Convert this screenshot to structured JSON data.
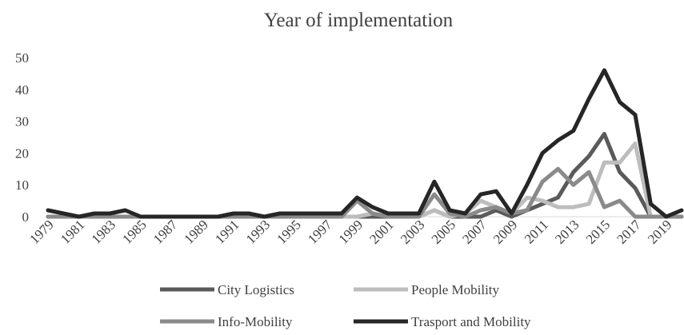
{
  "chart_data": {
    "type": "line",
    "title": "Year of implementation",
    "xlabel": "",
    "ylabel": "",
    "ylim": [
      0,
      50
    ],
    "yticks": [
      0,
      10,
      20,
      30,
      40,
      50
    ],
    "grid": false,
    "legend_position": "bottom",
    "x": [
      1979,
      1980,
      1981,
      1982,
      1983,
      1984,
      1985,
      1986,
      1987,
      1988,
      1989,
      1990,
      1991,
      1992,
      1993,
      1994,
      1995,
      1996,
      1997,
      1998,
      1999,
      2000,
      2001,
      2002,
      2003,
      2004,
      2005,
      2006,
      2007,
      2008,
      2009,
      2010,
      2011,
      2012,
      2013,
      2014,
      2015,
      2016,
      2017,
      2018,
      2019,
      2020
    ],
    "x_tick_labels": [
      "1979",
      "1981",
      "1983",
      "1985",
      "1987",
      "1989",
      "1991",
      "1993",
      "1995",
      "1997",
      "1999",
      "2001",
      "2003",
      "2005",
      "2007",
      "2009",
      "2011",
      "2013",
      "2015",
      "2017",
      "2019"
    ],
    "series": [
      {
        "name": "City Logistics",
        "color": "#5a5a5a",
        "values": [
          0,
          0,
          0,
          0,
          0,
          0,
          0,
          0,
          0,
          0,
          0,
          0,
          0,
          0,
          0,
          0,
          0,
          0,
          0,
          0,
          0,
          0,
          0,
          0,
          0,
          2,
          0,
          0,
          0,
          2,
          0,
          2,
          4,
          6,
          14,
          19,
          26,
          14,
          9,
          0,
          0,
          0
        ]
      },
      {
        "name": "People Mobility",
        "color": "#bdbdbd",
        "values": [
          0,
          0,
          0,
          0,
          0,
          0,
          0,
          0,
          0,
          0,
          0,
          0,
          0,
          0,
          0,
          0,
          0,
          0,
          0,
          0,
          0,
          1,
          0,
          0,
          0,
          2,
          0,
          1,
          5,
          3,
          1,
          6,
          5,
          3,
          3,
          4,
          17,
          17,
          23,
          0,
          0,
          0
        ]
      },
      {
        "name": "Info-Mobility",
        "color": "#8a8a8a",
        "values": [
          0,
          0,
          0,
          0,
          0,
          0,
          0,
          0,
          0,
          0,
          0,
          0,
          0,
          0,
          0,
          0,
          0,
          0,
          0,
          0,
          5,
          1,
          0,
          0,
          0,
          7,
          1,
          0,
          2,
          3,
          1,
          2,
          11,
          15,
          10,
          14,
          3,
          5,
          0,
          0,
          0,
          0
        ]
      },
      {
        "name": "Trasport and Mobility",
        "color": "#262626",
        "values": [
          2,
          1,
          0,
          1,
          1,
          2,
          0,
          0,
          0,
          0,
          0,
          0,
          1,
          1,
          0,
          1,
          1,
          1,
          1,
          1,
          6,
          3,
          1,
          1,
          1,
          11,
          2,
          1,
          7,
          8,
          1,
          10,
          20,
          24,
          27,
          37,
          46,
          36,
          32,
          4,
          0,
          2
        ]
      }
    ]
  }
}
